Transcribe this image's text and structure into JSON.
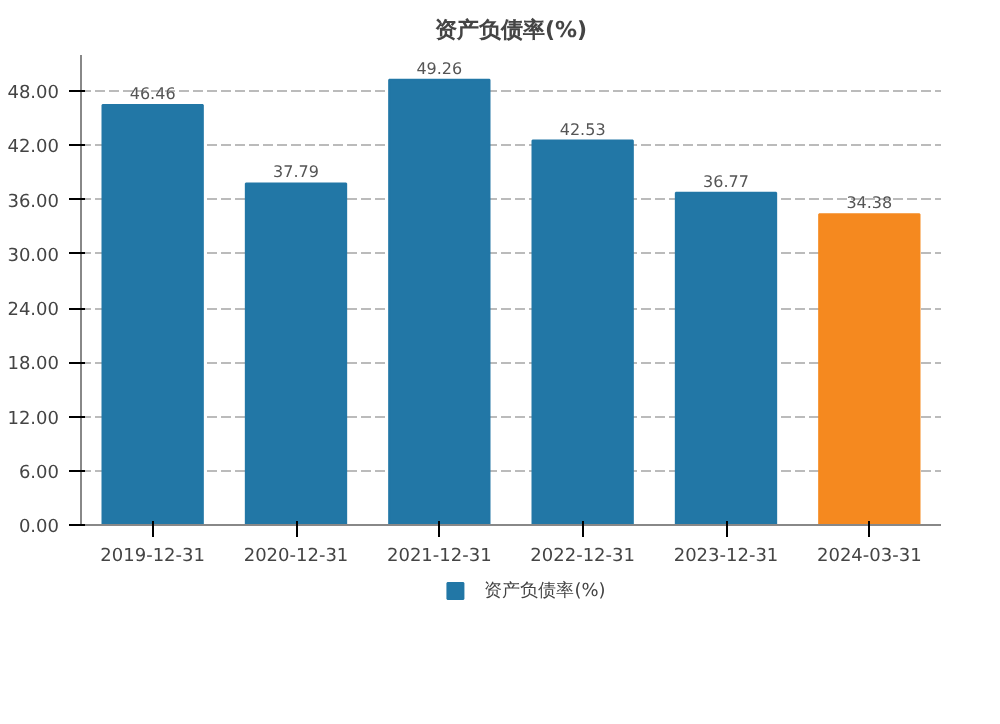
{
  "chart_data": {
    "type": "bar",
    "title": "资产负债率(%)",
    "categories": [
      "2019-12-31",
      "2020-12-31",
      "2021-12-31",
      "2022-12-31",
      "2023-12-31",
      "2024-03-31"
    ],
    "series": [
      {
        "name": "资产负债率(%)",
        "color": "#2277a6",
        "colors": [
          "#2277a6",
          "#2277a6",
          "#2277a6",
          "#2277a6",
          "#2277a6",
          "#f5891f"
        ],
        "values": [
          46.46,
          37.79,
          49.26,
          42.53,
          36.77,
          34.38
        ]
      }
    ],
    "ylim": [
      0,
      52
    ],
    "yticks": [
      {
        "value": 0,
        "label": "0.00"
      },
      {
        "value": 6,
        "label": "6.00"
      },
      {
        "value": 12,
        "label": "12.00"
      },
      {
        "value": 18,
        "label": "18.00"
      },
      {
        "value": 24,
        "label": "24.00"
      },
      {
        "value": 30,
        "label": "30.00"
      },
      {
        "value": 36,
        "label": "36.00"
      },
      {
        "value": 42,
        "label": "42.00"
      },
      {
        "value": 48,
        "label": "48.00"
      }
    ],
    "grid": "y",
    "legend": "bottom",
    "data_labels": true
  }
}
